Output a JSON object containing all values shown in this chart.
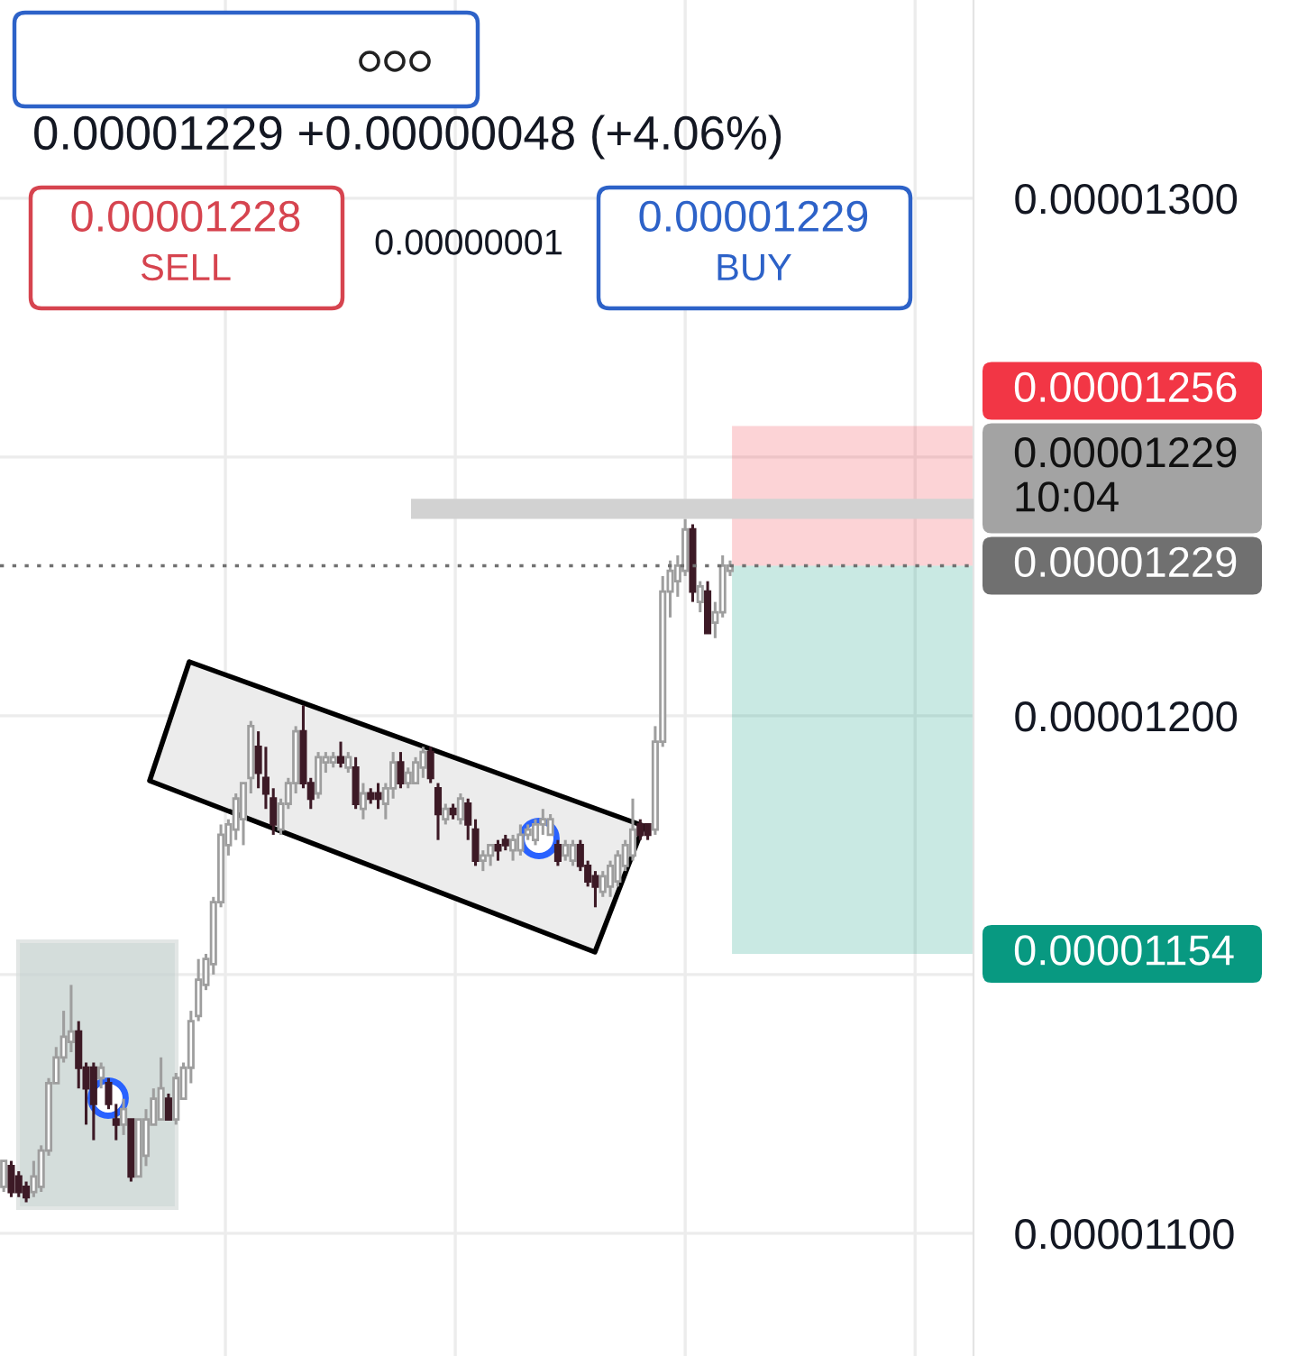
{
  "chart_data": {
    "type": "candlestick",
    "categories": [
      null,
      null,
      null,
      null,
      null,
      null,
      null,
      null,
      null,
      null,
      null,
      null,
      null,
      null,
      null,
      null,
      null,
      null,
      null,
      null,
      null,
      null,
      null,
      null,
      null,
      null,
      null,
      null,
      null,
      null,
      null,
      null,
      null,
      null,
      null,
      null,
      null,
      null,
      null,
      null,
      null,
      null,
      null,
      null,
      null,
      null,
      null,
      null,
      null,
      null,
      null,
      null,
      null,
      null,
      null,
      null,
      null,
      null,
      null,
      null,
      null,
      null,
      null,
      null,
      null,
      null,
      null,
      null,
      null,
      null,
      null,
      null,
      null,
      null,
      null,
      null,
      null,
      null,
      null,
      null,
      null,
      null,
      null,
      null,
      null,
      null,
      null,
      null,
      null,
      null,
      null,
      null,
      null,
      null,
      null,
      null,
      null,
      null,
      null,
      null,
      null,
      null,
      null,
      null,
      null,
      null,
      null,
      null,
      null,
      null,
      null,
      null,
      null,
      null,
      null,
      null,
      null,
      null,
      null,
      null,
      null,
      null,
      null,
      null,
      null,
      null,
      null,
      null,
      null,
      null
    ],
    "ohlc": [
      [
        1.109e-05,
        1.114e-05,
        1.108e-05,
        1.114e-05
      ],
      [
        1.113e-05,
        1.114e-05,
        1.107e-05,
        1.108e-05
      ],
      [
        1.111e-05,
        1.112e-05,
        1.107e-05,
        1.108e-05
      ],
      [
        1.109e-05,
        1.11e-05,
        1.106e-05,
        1.107e-05
      ],
      [
        1.108e-05,
        1.114e-05,
        1.107e-05,
        1.111e-05
      ],
      [
        1.109e-05,
        1.117e-05,
        1.108e-05,
        1.116e-05
      ],
      [
        1.116e-05,
        1.13e-05,
        1.115e-05,
        1.129e-05
      ],
      [
        1.129e-05,
        1.136e-05,
        1.129e-05,
        1.134e-05
      ],
      [
        1.134e-05,
        1.143e-05,
        1.133e-05,
        1.138e-05
      ],
      [
        1.137e-05,
        1.148e-05,
        1.135e-05,
        1.139e-05
      ],
      [
        1.139e-05,
        1.141e-05,
        1.128e-05,
        1.132e-05
      ],
      [
        1.132e-05,
        1.133e-05,
        1.121e-05,
        1.128e-05
      ],
      [
        1.132e-05,
        1.133e-05,
        1.118e-05,
        1.125e-05
      ],
      [
        1.13e-05,
        1.133e-05,
        1.128e-05,
        1.132e-05
      ],
      [
        1.129e-05,
        1.13e-05,
        1.124e-05,
        1.125e-05
      ],
      [
        1.122e-05,
        1.125e-05,
        1.118e-05,
        1.121e-05
      ],
      [
        1.121e-05,
        1.126e-05,
        1.119e-05,
        1.124e-05
      ],
      [
        1.122e-05,
        1.122e-05,
        1.11e-05,
        1.111e-05
      ],
      [
        1.111e-05,
        1.122e-05,
        1.111e-05,
        1.122e-05
      ],
      [
        1.115e-05,
        1.124e-05,
        1.113e-05,
        1.122e-05
      ],
      [
        1.121e-05,
        1.128e-05,
        1.121e-05,
        1.126e-05
      ],
      [
        1.122e-05,
        1.134e-05,
        1.122e-05,
        1.128e-05
      ],
      [
        1.126e-05,
        1.127e-05,
        1.122e-05,
        1.122e-05
      ],
      [
        1.122e-05,
        1.131e-05,
        1.121e-05,
        1.13e-05
      ],
      [
        1.126e-05,
        1.133e-05,
        1.126e-05,
        1.132e-05
      ],
      [
        1.132e-05,
        1.143e-05,
        1.129e-05,
        1.141e-05
      ],
      [
        1.142e-05,
        1.153e-05,
        1.141e-05,
        1.149e-05
      ],
      [
        1.148e-05,
        1.154e-05,
        1.147e-05,
        1.153e-05
      ],
      [
        1.152e-05,
        1.165e-05,
        1.15e-05,
        1.164e-05
      ],
      [
        1.164e-05,
        1.179e-05,
        1.163e-05,
        1.177e-05
      ],
      [
        1.175e-05,
        1.18e-05,
        1.173e-05,
        1.179e-05
      ],
      [
        1.178e-05,
        1.185e-05,
        1.176e-05,
        1.184e-05
      ],
      [
        1.18e-05,
        1.187e-05,
        1.175e-05,
        1.187e-05
      ],
      [
        1.188e-05,
        1.199e-05,
        1.185e-05,
        1.198e-05
      ],
      [
        1.194e-05,
        1.197e-05,
        1.186e-05,
        1.189e-05
      ],
      [
        1.188e-05,
        1.194e-05,
        1.182e-05,
        1.185e-05
      ],
      [
        1.184e-05,
        1.186e-05,
        1.177e-05,
        1.179e-05
      ],
      [
        1.178e-05,
        1.184e-05,
        1.177e-05,
        1.183e-05
      ],
      [
        1.183e-05,
        1.188e-05,
        1.182e-05,
        1.187e-05
      ],
      [
        1.187e-05,
        1.198e-05,
        1.185e-05,
        1.197e-05
      ],
      [
        1.197e-05,
        1.202e-05,
        1.186e-05,
        1.187e-05
      ],
      [
        1.187e-05,
        1.188e-05,
        1.182e-05,
        1.184e-05
      ],
      [
        1.185e-05,
        1.193e-05,
        1.184e-05,
        1.192e-05
      ],
      [
        1.191e-05,
        1.193e-05,
        1.189e-05,
        1.192e-05
      ],
      [
        1.191e-05,
        1.193e-05,
        1.19e-05,
        1.192e-05
      ],
      [
        1.192e-05,
        1.195e-05,
        1.19e-05,
        1.191e-05
      ],
      [
        1.19e-05,
        1.193e-05,
        1.189e-05,
        1.192e-05
      ],
      [
        1.19e-05,
        1.192e-05,
        1.182e-05,
        1.183e-05
      ],
      [
        1.182e-05,
        1.187e-05,
        1.18e-05,
        1.185e-05
      ],
      [
        1.185e-05,
        1.186e-05,
        1.183e-05,
        1.184e-05
      ],
      [
        1.185e-05,
        1.187e-05,
        1.182e-05,
        1.184e-05
      ],
      [
        1.183e-05,
        1.187e-05,
        1.18e-05,
        1.186e-05
      ],
      [
        1.186e-05,
        1.193e-05,
        1.184e-05,
        1.191e-05
      ],
      [
        1.191e-05,
        1.193e-05,
        1.186e-05,
        1.187e-05
      ],
      [
        1.187e-05,
        1.19e-05,
        1.186e-05,
        1.189e-05
      ],
      [
        1.187e-05,
        1.192e-05,
        1.187e-05,
        1.191e-05
      ],
      [
        1.19e-05,
        1.194e-05,
        1.188e-05,
        1.193e-05
      ],
      [
        1.193e-05,
        1.194e-05,
        1.187e-05,
        1.188e-05
      ],
      [
        1.186e-05,
        1.187e-05,
        1.176e-05,
        1.181e-05
      ],
      [
        1.18e-05,
        1.183e-05,
        1.179e-05,
        1.182e-05
      ],
      [
        1.182e-05,
        1.183e-05,
        1.18e-05,
        1.181e-05
      ],
      [
        1.18e-05,
        1.185e-05,
        1.179e-05,
        1.184e-05
      ],
      [
        1.183e-05,
        1.184e-05,
        1.176e-05,
        1.179e-05
      ],
      [
        1.178e-05,
        1.18e-05,
        1.171e-05,
        1.172e-05
      ],
      [
        1.172e-05,
        1.174e-05,
        1.17e-05,
        1.173e-05
      ],
      [
        1.173e-05,
        1.175e-05,
        1.171e-05,
        1.175e-05
      ],
      [
        1.175e-05,
        1.176e-05,
        1.172e-05,
        1.174e-05
      ],
      [
        1.176e-05,
        1.177e-05,
        1.174e-05,
        1.175e-05
      ],
      [
        1.174e-05,
        1.177e-05,
        1.172e-05,
        1.176e-05
      ],
      [
        1.174e-05,
        1.179e-05,
        1.173e-05,
        1.177e-05
      ],
      [
        1.177e-05,
        1.179e-05,
        1.176e-05,
        1.178e-05
      ],
      [
        1.176e-05,
        1.18e-05,
        1.175e-05,
        1.179e-05
      ],
      [
        1.179e-05,
        1.182e-05,
        1.177e-05,
        1.18e-05
      ],
      [
        1.177e-05,
        1.181e-05,
        1.177e-05,
        1.18e-05
      ],
      [
        1.175e-05,
        1.176e-05,
        1.171e-05,
        1.172e-05
      ],
      [
        1.173e-05,
        1.176e-05,
        1.172e-05,
        1.175e-05
      ],
      [
        1.172e-05,
        1.176e-05,
        1.171e-05,
        1.175e-05
      ],
      [
        1.175e-05,
        1.176e-05,
        1.17e-05,
        1.171e-05
      ],
      [
        1.171e-05,
        1.172e-05,
        1.167e-05,
        1.168e-05
      ],
      [
        1.169e-05,
        1.17e-05,
        1.163e-05,
        1.167e-05
      ],
      [
        1.166e-05,
        1.17e-05,
        1.165e-05,
        1.169e-05
      ],
      [
        1.167e-05,
        1.172e-05,
        1.165e-05,
        1.171e-05
      ],
      [
        1.168e-05,
        1.174e-05,
        1.167e-05,
        1.173e-05
      ],
      [
        1.171e-05,
        1.176e-05,
        1.17e-05,
        1.175e-05
      ],
      [
        1.173e-05,
        1.184e-05,
        1.172e-05,
        1.178e-05
      ],
      [
        1.179e-05,
        1.18e-05,
        1.176e-05,
        1.177e-05
      ],
      [
        1.179e-05,
        1.179e-05,
        1.176e-05,
        1.177e-05
      ],
      [
        1.178e-05,
        1.198e-05,
        1.177e-05,
        1.195e-05
      ],
      [
        1.195e-05,
        1.227e-05,
        1.194e-05,
        1.224e-05
      ],
      [
        1.224e-05,
        1.23e-05,
        1.219e-05,
        1.228e-05
      ],
      [
        1.226e-05,
        1.231e-05,
        1.223e-05,
        1.229e-05
      ],
      [
        1.228e-05,
        1.238e-05,
        1.227e-05,
        1.236e-05
      ],
      [
        1.236e-05,
        1.237e-05,
        1.222e-05,
        1.224e-05
      ],
      [
        1.222e-05,
        1.226e-05,
        1.22e-05,
        1.225e-05
      ],
      [
        1.224e-05,
        1.226e-05,
        1.216e-05,
        1.216e-05
      ],
      [
        1.218e-05,
        1.222e-05,
        1.215e-05,
        1.22e-05
      ],
      [
        1.22e-05,
        1.231e-05,
        1.219e-05,
        1.229e-05
      ],
      [
        1.228e-05,
        1.23e-05,
        1.227e-05,
        1.229e-05
      ],
      null,
      null,
      null,
      null,
      null,
      null,
      null,
      null,
      null,
      null,
      null,
      null,
      null,
      null,
      null,
      null,
      null,
      null,
      null,
      null,
      null,
      null,
      null,
      null,
      null,
      null,
      null,
      null,
      null,
      null,
      null,
      null
    ],
    "colors": [
      "#9e9e9e",
      "#3d1a26",
      "#3d1a26",
      "#3d1a26",
      "#9e9e9e",
      "#9e9e9e",
      "#9e9e9e",
      "#9e9e9e",
      "#9e9e9e",
      "#9e9e9e",
      "#3d1a26",
      "#3d1a26",
      "#3d1a26",
      "#9e9e9e",
      "#3d1a26",
      "#3d1a26",
      "#9e9e9e",
      "#3d1a26",
      "#9e9e9e",
      "#9e9e9e",
      "#9e9e9e",
      "#9e9e9e",
      "#3d1a26",
      "#9e9e9e",
      "#9e9e9e",
      "#9e9e9e",
      "#9e9e9e",
      "#9e9e9e",
      "#9e9e9e",
      "#9e9e9e",
      "#9e9e9e",
      "#9e9e9e",
      "#9e9e9e",
      "#9e9e9e",
      "#3d1a26",
      "#3d1a26",
      "#3d1a26",
      "#9e9e9e",
      "#9e9e9e",
      "#9e9e9e",
      "#3d1a26",
      "#3d1a26",
      "#9e9e9e",
      "#9e9e9e",
      "#9e9e9e",
      "#3d1a26",
      "#9e9e9e",
      "#3d1a26",
      "#9e9e9e",
      "#3d1a26",
      "#3d1a26",
      "#9e9e9e",
      "#9e9e9e",
      "#3d1a26",
      "#9e9e9e",
      "#9e9e9e",
      "#9e9e9e",
      "#3d1a26",
      "#3d1a26",
      "#9e9e9e",
      "#3d1a26",
      "#9e9e9e",
      "#3d1a26",
      "#3d1a26",
      "#9e9e9e",
      "#9e9e9e",
      "#3d1a26",
      "#3d1a26",
      "#9e9e9e",
      "#9e9e9e",
      "#9e9e9e",
      "#9e9e9e",
      "#9e9e9e",
      "#9e9e9e",
      "#3d1a26",
      "#9e9e9e",
      "#9e9e9e",
      "#3d1a26",
      "#3d1a26",
      "#3d1a26",
      "#9e9e9e",
      "#9e9e9e",
      "#9e9e9e",
      "#9e9e9e",
      "#9e9e9e",
      "#3d1a26",
      "#3d1a26",
      "#9e9e9e",
      "#9e9e9e",
      "#9e9e9e",
      "#9e9e9e",
      "#9e9e9e",
      "#3d1a26",
      "#9e9e9e",
      "#3d1a26",
      "#9e9e9e",
      "#9e9e9e",
      "#9e9e9e",
      null,
      null,
      null,
      null,
      null,
      null,
      null,
      null,
      null,
      null,
      null,
      null,
      null,
      null,
      null,
      null,
      null,
      null,
      null,
      null,
      null,
      null,
      null,
      null,
      null,
      null,
      null,
      null,
      null,
      null,
      null,
      null
    ],
    "ylim": [
      1.0763e-05,
      1.3383e-05
    ],
    "yticks": [
      {
        "value": 1.1e-05,
        "label": "0.00001100"
      },
      {
        "value": 1.15e-05,
        "label": null
      },
      {
        "value": 1.2e-05,
        "label": "0.00001200"
      },
      {
        "value": 1.25e-05,
        "label": null
      },
      {
        "value": 1.3e-05,
        "label": "0.00001300"
      }
    ],
    "grid": true,
    "tick_labels": "y",
    "ref_lines": [
      {
        "axis": "y",
        "value": 1.229e-05,
        "label": "0.00001229",
        "color": "#707070",
        "line_style": "dotted"
      },
      {
        "axis": "y",
        "value": 1.24e-05,
        "color": "#d2d2d2"
      }
    ],
    "bands": [
      {
        "axis": "y",
        "from": 1.229e-05,
        "to": 1.256e-05,
        "label": "0.00001256",
        "color": "#f23645"
      },
      {
        "axis": "y",
        "from": 1.229e-05,
        "to": 1.154e-05,
        "label": "0.00001154",
        "color": "#089981"
      }
    ],
    "annotations": [
      "0.00001229 +0.00000048 (+4.06%)",
      "0.00001228",
      "SELL",
      "0.00000001",
      "0.00001229",
      "BUY",
      "0.00001229\n10:04"
    ]
  }
}
